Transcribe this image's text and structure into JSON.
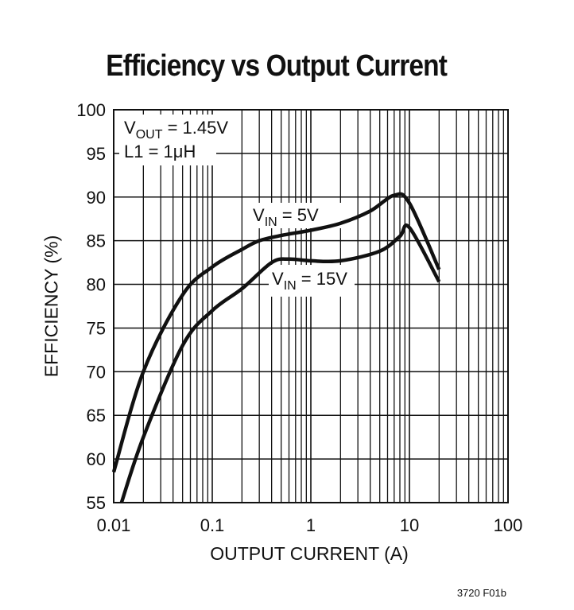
{
  "chart_data": {
    "type": "line",
    "title": "Efficiency vs Output Current",
    "xlabel": "OUTPUT CURRENT (A)",
    "ylabel": "EFFICIENCY (%)",
    "xscale": "log",
    "xlim": [
      0.01,
      100
    ],
    "ylim": [
      55,
      100
    ],
    "xticks": [
      "0.01",
      "0.1",
      "1",
      "10",
      "100"
    ],
    "yticks": [
      "55",
      "60",
      "65",
      "70",
      "75",
      "80",
      "85",
      "90",
      "95",
      "100"
    ],
    "grid": true,
    "annotations": {
      "conditions": [
        {
          "main": "V",
          "sub": "OUT",
          "rest": " = 1.45V"
        },
        {
          "main": "L1 = 1μH",
          "sub": "",
          "rest": ""
        }
      ]
    },
    "series": [
      {
        "name": "VIN = 5V",
        "label": {
          "main": "V",
          "sub": "IN",
          "rest": " = 5V"
        },
        "x": [
          0.01,
          0.02,
          0.05,
          0.1,
          0.2,
          0.3,
          0.5,
          1,
          2,
          4,
          7,
          10,
          20
        ],
        "y": [
          58.5,
          70,
          78.8,
          82,
          84,
          85,
          85.6,
          86.2,
          87,
          88.4,
          90.2,
          89.3,
          81.7
        ]
      },
      {
        "name": "VIN = 15V",
        "label": {
          "main": "V",
          "sub": "IN",
          "rest": " = 15V"
        },
        "x": [
          0.012,
          0.02,
          0.05,
          0.1,
          0.2,
          0.4,
          0.6,
          1,
          2,
          5,
          8,
          10,
          20
        ],
        "y": [
          55,
          62.5,
          73,
          77,
          79.5,
          82.5,
          82.9,
          82.7,
          82.7,
          83.8,
          85.5,
          86.5,
          80.3
        ]
      }
    ],
    "footer": "3720 F01b"
  }
}
